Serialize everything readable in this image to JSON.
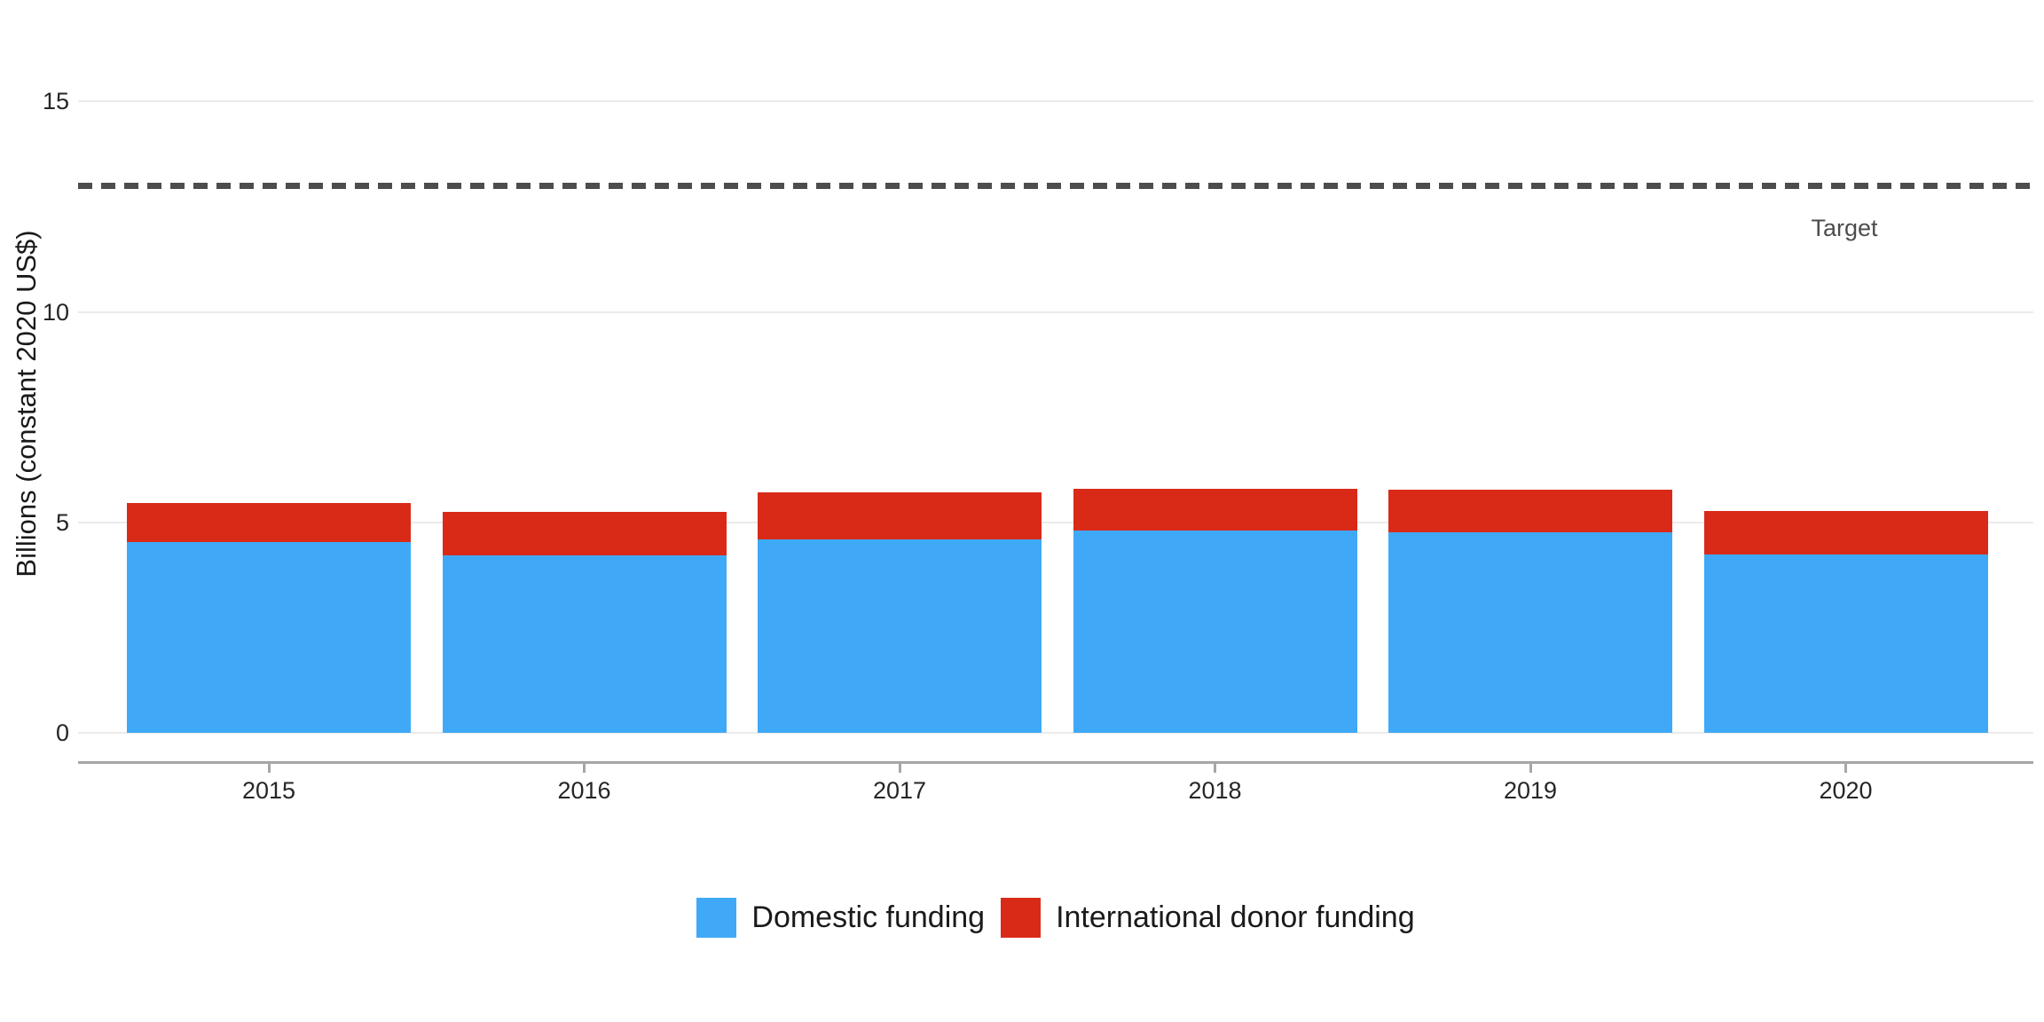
{
  "chart_data": {
    "type": "bar",
    "stacked": true,
    "title": "",
    "categories": [
      "2015",
      "2016",
      "2017",
      "2018",
      "2019",
      "2020"
    ],
    "series": [
      {
        "name": "Domestic funding",
        "color": "#3FA9F8",
        "values": [
          4.54,
          4.21,
          4.59,
          4.8,
          4.76,
          4.24
        ]
      },
      {
        "name": "International donor funding",
        "color": "#D92A18",
        "values": [
          0.91,
          1.04,
          1.12,
          0.99,
          1.01,
          1.03
        ]
      }
    ],
    "totals": [
      5.45,
      5.25,
      5.71,
      5.79,
      5.77,
      5.27
    ],
    "xlabel": "",
    "ylabel": "Billions (constant 2020 US$)",
    "yticks": [
      0,
      5,
      10,
      15
    ],
    "ylim": [
      0,
      16.4
    ],
    "grid": "horizontal",
    "legend_position": "bottom",
    "target_line": {
      "value": 13,
      "label": "Target",
      "style": "dashed",
      "color": "#4D4D4D"
    }
  },
  "colors": {
    "background": "#FFFFFF",
    "gridline": "#EBEBEB",
    "axis": "#A6A6A6",
    "tick_text": "#262626",
    "target_text": "#4D4D4D"
  }
}
